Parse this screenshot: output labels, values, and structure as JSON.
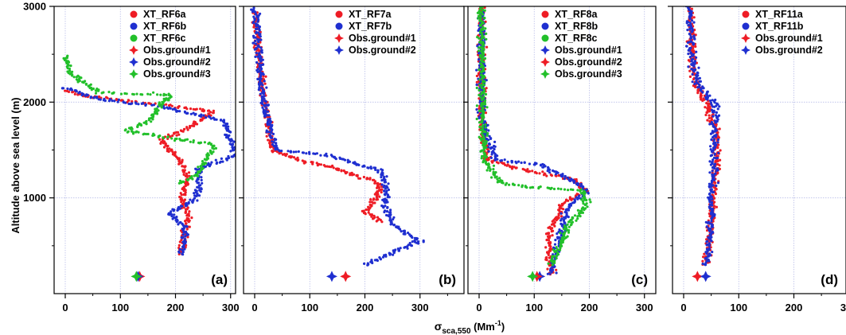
{
  "figure": {
    "ylabel": "Altitude above sea level (m)",
    "xlabel_main": "σ",
    "xlabel_sub": "sca,550",
    "xlabel_unit_open": " (Mm",
    "xlabel_unit_sup": "-1",
    "xlabel_unit_close": ")"
  },
  "colors": {
    "red": "#ee1c25",
    "blue": "#1f2fd0",
    "green": "#22c02a"
  },
  "chart_data": [
    {
      "type": "scatter",
      "panel": "(a)",
      "xlim": [
        -20,
        380
      ],
      "ylim": [
        0,
        3000
      ],
      "xticks": [
        0,
        100,
        200,
        300
      ],
      "yticks": [
        1000,
        2000,
        3000
      ],
      "grid": true,
      "legend_position": "top-right",
      "series": [
        {
          "name": "XT_RF6a",
          "color": "red",
          "marker": "circle",
          "profile": [
            [
              0,
              2120
            ],
            [
              40,
              2060
            ],
            [
              120,
              2010
            ],
            [
              270,
              1900
            ],
            [
              220,
              1720
            ],
            [
              175,
              1600
            ],
            [
              205,
              1400
            ],
            [
              225,
              1200
            ],
            [
              210,
              1000
            ],
            [
              225,
              800
            ],
            [
              215,
              600
            ],
            [
              210,
              400
            ]
          ]
        },
        {
          "name": "XT_RF6b",
          "color": "blue",
          "marker": "circle",
          "profile": [
            [
              0,
              2150
            ],
            [
              70,
              2020
            ],
            [
              180,
              1950
            ],
            [
              290,
              1800
            ],
            [
              300,
              1600
            ],
            [
              310,
              1450
            ],
            [
              240,
              1300
            ],
            [
              245,
              1100
            ],
            [
              230,
              950
            ],
            [
              190,
              850
            ],
            [
              215,
              700
            ],
            [
              215,
              500
            ],
            [
              210,
              400
            ]
          ]
        },
        {
          "name": "XT_RF6c",
          "color": "green",
          "marker": "circle",
          "profile": [
            [
              0,
              2480
            ],
            [
              10,
              2300
            ],
            [
              60,
              2100
            ],
            [
              190,
              2080
            ],
            [
              150,
              1800
            ],
            [
              110,
              1700
            ],
            [
              270,
              1550
            ],
            [
              240,
              1250
            ],
            [
              210,
              1150
            ]
          ]
        },
        {
          "name": "Obs.ground#1",
          "color": "red",
          "marker": "star",
          "x": 135,
          "y": 180
        },
        {
          "name": "Obs.ground#2",
          "color": "blue",
          "marker": "star",
          "x": 132,
          "y": 180
        },
        {
          "name": "Obs.ground#3",
          "color": "green",
          "marker": "star",
          "x": 129,
          "y": 180
        }
      ]
    },
    {
      "type": "scatter",
      "panel": "(b)",
      "xlim": [
        -20,
        380
      ],
      "ylim": [
        0,
        3000
      ],
      "xticks": [
        0,
        100,
        200,
        300
      ],
      "yticks": [
        1000,
        2000,
        3000
      ],
      "grid": true,
      "legend_position": "top-right",
      "series": [
        {
          "name": "XT_RF7a",
          "color": "red",
          "marker": "circle",
          "profile": [
            [
              0,
              2950
            ],
            [
              8,
              2500
            ],
            [
              15,
              2100
            ],
            [
              25,
              1800
            ],
            [
              30,
              1500
            ],
            [
              80,
              1400
            ],
            [
              150,
              1300
            ],
            [
              230,
              1150
            ],
            [
              220,
              1000
            ],
            [
              200,
              850
            ],
            [
              230,
              750
            ]
          ]
        },
        {
          "name": "XT_RF7b",
          "color": "blue",
          "marker": "circle",
          "profile": [
            [
              0,
              2980
            ],
            [
              8,
              2500
            ],
            [
              14,
              2100
            ],
            [
              24,
              1800
            ],
            [
              40,
              1500
            ],
            [
              130,
              1450
            ],
            [
              230,
              1280
            ],
            [
              240,
              1050
            ],
            [
              235,
              900
            ],
            [
              255,
              700
            ],
            [
              300,
              550
            ],
            [
              200,
              300
            ]
          ]
        },
        {
          "name": "Obs.ground#1",
          "color": "red",
          "marker": "star",
          "x": 165,
          "y": 180
        },
        {
          "name": "Obs.ground#2",
          "color": "blue",
          "marker": "star",
          "x": 140,
          "y": 180
        }
      ]
    },
    {
      "type": "scatter",
      "panel": "(c)",
      "xlim": [
        -20,
        380
      ],
      "ylim": [
        0,
        3000
      ],
      "xticks": [
        0,
        100,
        200,
        300
      ],
      "yticks": [
        1000,
        2000,
        3000
      ],
      "grid": true,
      "legend_position": "top-right",
      "series": [
        {
          "name": "XT_RF8a",
          "color": "red",
          "marker": "circle",
          "profile": [
            [
              5,
              2980
            ],
            [
              5,
              2200
            ],
            [
              5,
              1700
            ],
            [
              15,
              1400
            ],
            [
              90,
              1280
            ],
            [
              170,
              1200
            ],
            [
              195,
              1080
            ],
            [
              155,
              950
            ],
            [
              125,
              600
            ],
            [
              130,
              200
            ]
          ]
        },
        {
          "name": "XT_RF8b",
          "color": "blue",
          "marker": "circle",
          "profile": [
            [
              5,
              2950
            ],
            [
              4,
              2200
            ],
            [
              6,
              1800
            ],
            [
              30,
              1400
            ],
            [
              110,
              1350
            ],
            [
              180,
              1150
            ],
            [
              195,
              1060
            ],
            [
              160,
              900
            ],
            [
              145,
              550
            ],
            [
              130,
              200
            ]
          ]
        },
        {
          "name": "XT_RF8c",
          "color": "green",
          "marker": "circle",
          "profile": [
            [
              5,
              3000
            ],
            [
              5,
              2400
            ],
            [
              6,
              1800
            ],
            [
              10,
              1400
            ],
            [
              40,
              1150
            ],
            [
              110,
              1100
            ],
            [
              190,
              1080
            ],
            [
              195,
              920
            ],
            [
              160,
              700
            ],
            [
              130,
              300
            ]
          ]
        },
        {
          "name": "Obs.ground#1",
          "color": "blue",
          "marker": "star",
          "x": 110,
          "y": 180
        },
        {
          "name": "Obs.ground#2",
          "color": "red",
          "marker": "star",
          "x": 105,
          "y": 180
        },
        {
          "name": "Obs.ground#3",
          "color": "green",
          "marker": "star",
          "x": 97,
          "y": 180
        }
      ]
    },
    {
      "type": "scatter",
      "panel": "(d)",
      "xlim": [
        -20,
        380
      ],
      "ylim": [
        0,
        3000
      ],
      "xticks": [
        0,
        100,
        200,
        300
      ],
      "yticks": [
        1000,
        2000,
        3000
      ],
      "grid": true,
      "legend_position": "top-right",
      "series": [
        {
          "name": "XT_RF11a",
          "color": "red",
          "marker": "circle",
          "profile": [
            [
              12,
              2980
            ],
            [
              15,
              2500
            ],
            [
              20,
              2200
            ],
            [
              40,
              2000
            ],
            [
              60,
              1700
            ],
            [
              60,
              1400
            ],
            [
              55,
              1100
            ],
            [
              50,
              800
            ],
            [
              45,
              500
            ],
            [
              40,
              300
            ]
          ]
        },
        {
          "name": "XT_RF11b",
          "color": "blue",
          "marker": "circle",
          "profile": [
            [
              10,
              3000
            ],
            [
              14,
              2500
            ],
            [
              25,
              2200
            ],
            [
              60,
              1950
            ],
            [
              55,
              1650
            ],
            [
              55,
              1300
            ],
            [
              50,
              1000
            ],
            [
              48,
              700
            ],
            [
              45,
              400
            ],
            [
              40,
              300
            ]
          ]
        },
        {
          "name": "Obs.ground#1",
          "color": "red",
          "marker": "star",
          "x": 25,
          "y": 180
        },
        {
          "name": "Obs.ground#2",
          "color": "blue",
          "marker": "star",
          "x": 40,
          "y": 180
        }
      ]
    }
  ]
}
